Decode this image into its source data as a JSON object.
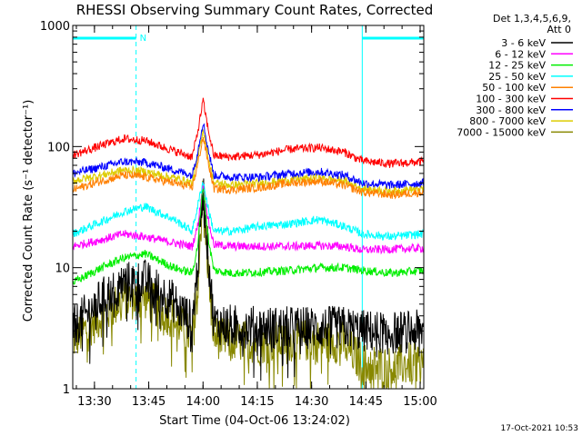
{
  "chart_data": {
    "type": "line",
    "title": "RHESSI Observing Summary Count Rates, Corrected",
    "xlabel": "Start Time (04-Oct-06 13:24:02)",
    "ylabel": "Corrected Count Rate (s⁻¹ detector⁻¹)",
    "x_range_minutes_after_start": [
      0,
      97
    ],
    "x_ticks": [
      {
        "label": "13:30",
        "t": 6
      },
      {
        "label": "13:45",
        "t": 21
      },
      {
        "label": "14:00",
        "t": 36
      },
      {
        "label": "14:15",
        "t": 51
      },
      {
        "label": "14:30",
        "t": 66
      },
      {
        "label": "14:45",
        "t": 81
      },
      {
        "label": "15:00",
        "t": 96
      }
    ],
    "y_scale": "log",
    "ylim": [
      1,
      1000
    ],
    "y_ticks": [
      {
        "label": "1000",
        "v": 1000
      },
      {
        "label": "100",
        "v": 100
      },
      {
        "label": "10",
        "v": 10
      },
      {
        "label": "1",
        "v": 1
      }
    ],
    "x": [
      0,
      8,
      14,
      20,
      28,
      33,
      34.5,
      36,
      37.5,
      39,
      44,
      52,
      60,
      68,
      75,
      80,
      88,
      97
    ],
    "series": [
      {
        "name": "3 - 6 keV",
        "color": "#000000",
        "values": [
          3.2,
          5.5,
          7.5,
          7.8,
          5.2,
          3.5,
          10,
          45,
          12,
          3.5,
          3.3,
          3.2,
          3.2,
          3.2,
          3.2,
          3.0,
          2.9,
          3.0
        ]
      },
      {
        "name": "6 - 12 keV",
        "color": "#ff00ff",
        "values": [
          15,
          17,
          19,
          18,
          16,
          15,
          22,
          48,
          24,
          15.5,
          15,
          15,
          15,
          15.2,
          15,
          14,
          14.2,
          14.5
        ]
      },
      {
        "name": "12 - 25 keV",
        "color": "#00ee00",
        "values": [
          7.5,
          10,
          12,
          13,
          10,
          9,
          15,
          48,
          17,
          9.5,
          9,
          9.2,
          9.5,
          10,
          10,
          9.5,
          9,
          9.5
        ]
      },
      {
        "name": "25 - 50 keV",
        "color": "#00ffff",
        "values": [
          19,
          24,
          29,
          32,
          25,
          20,
          32,
          52,
          30,
          20,
          20,
          22,
          23,
          25,
          22,
          19,
          18,
          19
        ]
      },
      {
        "name": "50 - 100 keV",
        "color": "#ff8000",
        "values": [
          44,
          52,
          58,
          56,
          50,
          46,
          70,
          120,
          72,
          45,
          44,
          46,
          50,
          52,
          48,
          42,
          40,
          42
        ]
      },
      {
        "name": "100 - 300 keV",
        "color": "#ff0000",
        "values": [
          85,
          102,
          116,
          112,
          92,
          82,
          130,
          240,
          135,
          84,
          82,
          86,
          95,
          98,
          90,
          76,
          72,
          75
        ]
      },
      {
        "name": "300 - 800 keV",
        "color": "#0000ff",
        "values": [
          60,
          68,
          75,
          74,
          64,
          58,
          90,
          160,
          92,
          58,
          56,
          56,
          60,
          62,
          58,
          50,
          48,
          50
        ]
      },
      {
        "name": "800 - 7000 keV",
        "color": "#ddcc00",
        "values": [
          52,
          58,
          64,
          62,
          55,
          50,
          78,
          140,
          80,
          50,
          48,
          50,
          53,
          55,
          52,
          45,
          43,
          45
        ]
      },
      {
        "name": "7000 - 15000 keV",
        "color": "#888800",
        "values": [
          2.5,
          4.0,
          5.5,
          5.6,
          3.8,
          2.6,
          8,
          42,
          9,
          2.7,
          2.5,
          2.4,
          2.5,
          2.5,
          2.4,
          1.6,
          1.5,
          1.7
        ]
      }
    ],
    "legend_header": [
      "Det 1,3,4,5,6,9,",
      "Att 0"
    ],
    "legend_placement": "right",
    "annotations": {
      "attenuator_marker_label": "N",
      "attenuator_intervals_minutes": [
        [
          0,
          17.5
        ],
        [
          80,
          97
        ]
      ],
      "timestamp": "17-Oct-2021 10:53"
    }
  }
}
